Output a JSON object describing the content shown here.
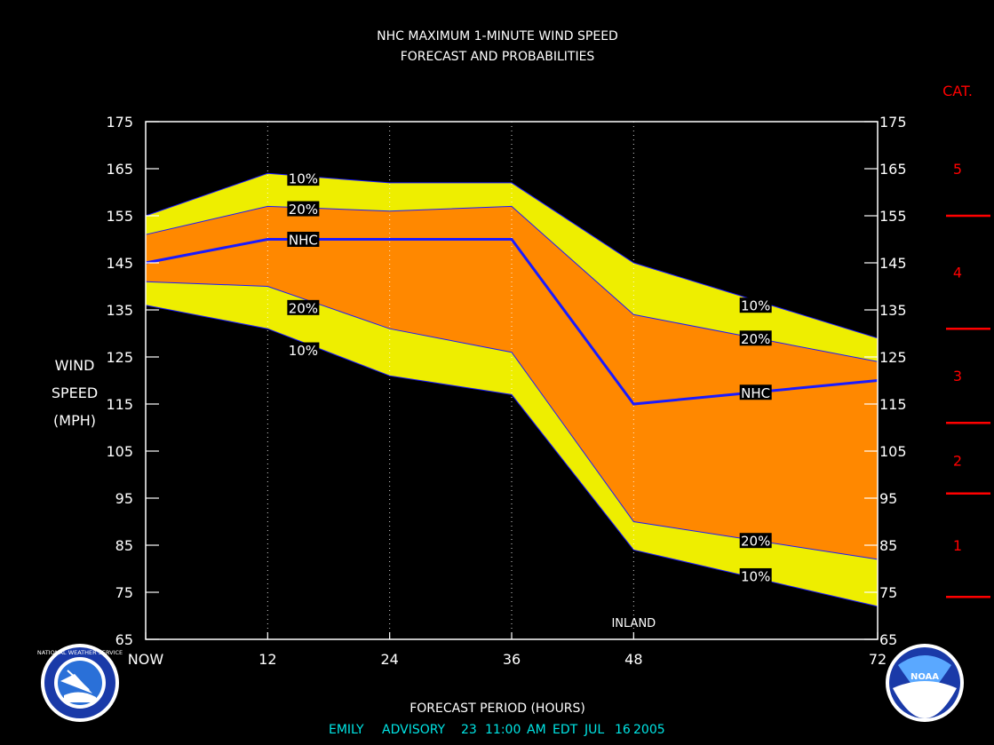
{
  "chart_data": {
    "type": "area",
    "title": "NHC MAXIMUM 1-MINUTE WIND SPEED",
    "subtitle": "FORECAST AND PROBABILITIES",
    "xlabel": "FORECAST PERIOD (HOURS)",
    "ylabel": [
      "WIND",
      "SPEED",
      "(MPH)"
    ],
    "x_tick_labels": [
      "NOW",
      "12",
      "24",
      "36",
      "48",
      "72"
    ],
    "x_ticks": [
      0,
      12,
      24,
      36,
      48,
      72
    ],
    "y_ticks": [
      65,
      75,
      85,
      95,
      105,
      115,
      125,
      135,
      145,
      155,
      165,
      175
    ],
    "ylim": [
      65,
      175
    ],
    "xlim": [
      0,
      72
    ],
    "x": [
      0,
      12,
      24,
      36,
      48,
      72
    ],
    "series": [
      {
        "name": "10%",
        "role": "upper",
        "values": [
          155,
          164,
          162,
          162,
          145,
          129
        ]
      },
      {
        "name": "20%",
        "role": "upper",
        "values": [
          151,
          157,
          156,
          157,
          134,
          124
        ]
      },
      {
        "name": "NHC",
        "role": "forecast",
        "values": [
          145,
          150,
          150,
          150,
          115,
          120
        ]
      },
      {
        "name": "20%",
        "role": "lower",
        "values": [
          141,
          140,
          131,
          126,
          90,
          82
        ]
      },
      {
        "name": "10%",
        "role": "lower",
        "values": [
          136,
          131,
          121,
          117,
          84,
          72
        ]
      }
    ],
    "band_labels": [
      {
        "text": "10%",
        "x": 15.5,
        "y": 163
      },
      {
        "text": "20%",
        "x": 15.5,
        "y": 156.5
      },
      {
        "text": "NHC",
        "x": 15.5,
        "y": 150
      },
      {
        "text": "20%",
        "x": 15.5,
        "y": 135.5
      },
      {
        "text": "10%",
        "x": 15.5,
        "y": 126.5
      },
      {
        "text": "10%",
        "x": 60,
        "y": 136
      },
      {
        "text": "20%",
        "x": 60,
        "y": 129
      },
      {
        "text": "NHC",
        "x": 60,
        "y": 117.5
      },
      {
        "text": "20%",
        "x": 60,
        "y": 86
      },
      {
        "text": "10%",
        "x": 60,
        "y": 78.5
      }
    ],
    "annotation": {
      "text": "INLAND",
      "x": 48,
      "y": 66.5
    },
    "category_scale": {
      "title": "CAT.",
      "thresholds": [
        74,
        96,
        111,
        131,
        155
      ],
      "categories": [
        {
          "label": "1",
          "y": 85
        },
        {
          "label": "2",
          "y": 103
        },
        {
          "label": "3",
          "y": 121
        },
        {
          "label": "4",
          "y": 143
        },
        {
          "label": "5",
          "y": 165
        }
      ]
    },
    "colors": {
      "background": "#000000",
      "band_10": "#eeee00",
      "band_20": "#ff8800",
      "nhc_line": "#1a1aff",
      "category": "#ff0000",
      "footer": "#00e5e5",
      "text": "#ffffff"
    },
    "grid": "vertical-dotted"
  },
  "footer": {
    "storm": "EMILY",
    "advisory": "ADVISORY",
    "number": "23",
    "time": "11:00",
    "ampm": "AM",
    "zone": "EDT",
    "month": "JUL",
    "day": "16",
    "year": "2005"
  },
  "logos": {
    "left": {
      "icon": "national-weather-service-logo",
      "text": "NATIONAL WEATHER SERVICE"
    },
    "right": {
      "icon": "noaa-logo",
      "text": "NOAA"
    }
  }
}
